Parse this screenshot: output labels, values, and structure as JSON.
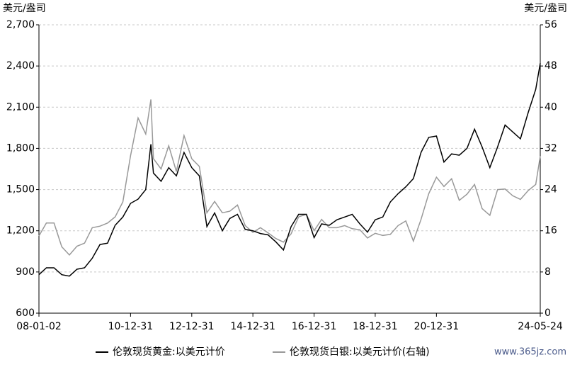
{
  "chart_data": {
    "type": "line",
    "y_label": "美元/盎司",
    "y2_label": "美元/盎司",
    "x": [
      "08-01-02",
      "08-03-31",
      "08-06-30",
      "08-09-30",
      "08-12-31",
      "09-03-31",
      "09-06-30",
      "09-09-30",
      "09-12-31",
      "10-03-31",
      "10-06-30",
      "10-09-30",
      "10-12-31",
      "11-03-31",
      "11-06-30",
      "11-08-31",
      "11-09-30",
      "11-12-31",
      "12-03-31",
      "12-06-30",
      "12-09-30",
      "12-12-31",
      "13-03-31",
      "13-06-30",
      "13-09-30",
      "13-12-31",
      "14-03-31",
      "14-06-30",
      "14-09-30",
      "14-12-31",
      "15-03-31",
      "15-06-30",
      "15-09-30",
      "15-12-31",
      "16-03-31",
      "16-06-30",
      "16-09-30",
      "16-12-31",
      "17-03-31",
      "17-06-30",
      "17-09-30",
      "17-12-31",
      "18-03-31",
      "18-06-30",
      "18-09-30",
      "18-12-31",
      "19-03-31",
      "19-06-30",
      "19-09-30",
      "19-12-31",
      "20-03-31",
      "20-06-30",
      "20-09-30",
      "20-12-31",
      "21-03-31",
      "21-06-30",
      "21-09-30",
      "21-12-31",
      "22-03-31",
      "22-06-30",
      "22-09-30",
      "22-12-31",
      "23-03-31",
      "23-06-30",
      "23-09-30",
      "23-12-31",
      "24-03-31",
      "24-05-24"
    ],
    "series": [
      {
        "name": "伦敦现货黄金:以美元计价",
        "color": "#000000",
        "values": [
          880,
          930,
          930,
          880,
          870,
          920,
          930,
          1000,
          1100,
          1110,
          1240,
          1300,
          1400,
          1430,
          1500,
          1830,
          1620,
          1560,
          1660,
          1600,
          1770,
          1660,
          1600,
          1230,
          1330,
          1200,
          1290,
          1320,
          1210,
          1200,
          1180,
          1170,
          1120,
          1060,
          1230,
          1320,
          1320,
          1150,
          1250,
          1240,
          1280,
          1300,
          1320,
          1250,
          1190,
          1280,
          1300,
          1410,
          1470,
          1520,
          1580,
          1770,
          1880,
          1890,
          1700,
          1760,
          1750,
          1800,
          1940,
          1810,
          1660,
          1810,
          1970,
          1920,
          1870,
          2060,
          2230,
          2420
        ]
      },
      {
        "name": "伦敦现货白银:以美元计价(右轴)",
        "color": "#999999",
        "axis": "y2",
        "values": [
          15,
          17.5,
          17.5,
          12.9,
          11.3,
          13,
          13.6,
          16.6,
          16.9,
          17.5,
          18.7,
          21.6,
          30.6,
          37.9,
          34.8,
          41.5,
          30,
          28,
          32.5,
          27.5,
          34.5,
          30,
          28.5,
          19.5,
          21.7,
          19.5,
          19.8,
          21,
          17,
          15.7,
          16.6,
          15.6,
          14.5,
          13.8,
          15.4,
          18.7,
          19.2,
          16,
          18.2,
          16.6,
          16.6,
          17,
          16.4,
          16.2,
          14.6,
          15.5,
          15.1,
          15.3,
          17,
          17.9,
          14,
          18.2,
          23.2,
          26.4,
          24.6,
          26.1,
          21.9,
          23.1,
          25,
          20.3,
          19,
          24,
          24.1,
          22.8,
          22.1,
          23.8,
          25,
          30.5
        ]
      }
    ],
    "xlim": [
      "08-01-02",
      "24-05-24"
    ],
    "xticks": [
      "08-01-02",
      "10-12-31",
      "12-12-31",
      "14-12-31",
      "16-12-31",
      "18-12-31",
      "20-12-31",
      "24-05-24"
    ],
    "ylim": [
      600,
      2700
    ],
    "yticks": [
      {
        "value": 600,
        "label": "600"
      },
      {
        "value": 900,
        "label": "900"
      },
      {
        "value": 1200,
        "label": "1,200"
      },
      {
        "value": 1500,
        "label": "1,500"
      },
      {
        "value": 1800,
        "label": "1,800"
      },
      {
        "value": 2100,
        "label": "2,100"
      },
      {
        "value": 2400,
        "label": "2,400"
      },
      {
        "value": 2700,
        "label": "2,700"
      }
    ],
    "y2lim": [
      0,
      56
    ],
    "y2ticks": [
      0,
      8,
      16,
      24,
      32,
      40,
      48,
      56
    ],
    "grid": true,
    "watermark": "www.365jz.com"
  }
}
